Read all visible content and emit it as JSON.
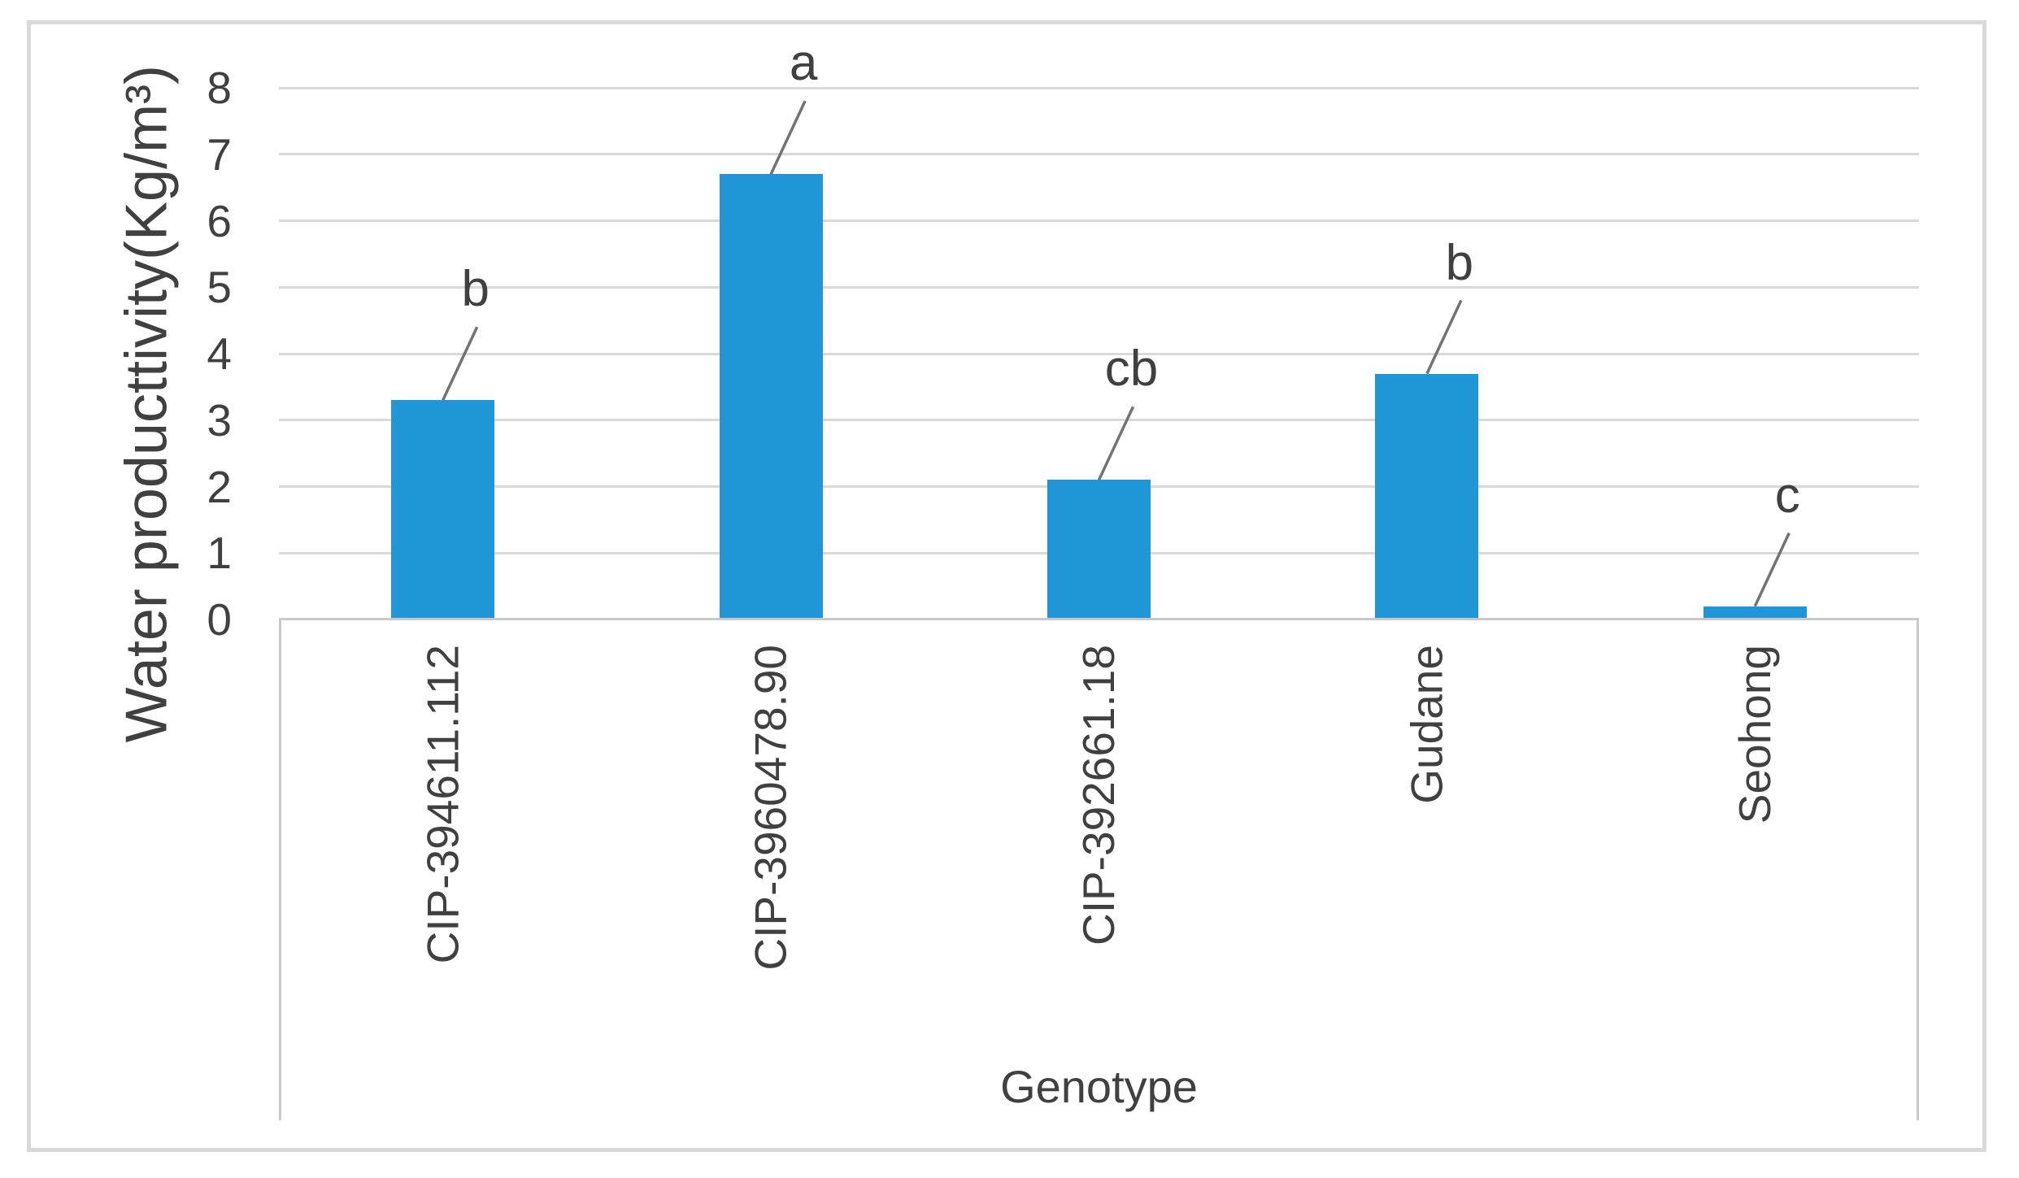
{
  "chart_data": {
    "type": "bar",
    "title": "",
    "categories": [
      "CIP-394611.112",
      "CIP-3960478.90",
      "CIP-392661.18",
      "Gudane",
      "Seohong"
    ],
    "values": [
      3.3,
      6.7,
      2.1,
      3.7,
      0.2
    ],
    "bar_annotations": [
      "b",
      "a",
      "cb",
      "b",
      "c"
    ],
    "xlabel": "Genotype",
    "ylabel": "Water producttivity(Kg/m³)",
    "ylim": [
      0,
      8
    ],
    "yticks": [
      0,
      1,
      2,
      3,
      4,
      5,
      6,
      7,
      8
    ],
    "grid": "horizontal",
    "legend": "none",
    "annotation_style": "significance letter above each bar with diagonal leader line",
    "colors": {
      "bar": "#2196d6",
      "gridline": "#d9d9d9",
      "axis_line": "#c9c9c9",
      "text": "#404040",
      "leader_line": "#737373",
      "figure_border": "#d9d9d9",
      "background": "#ffffff"
    }
  }
}
